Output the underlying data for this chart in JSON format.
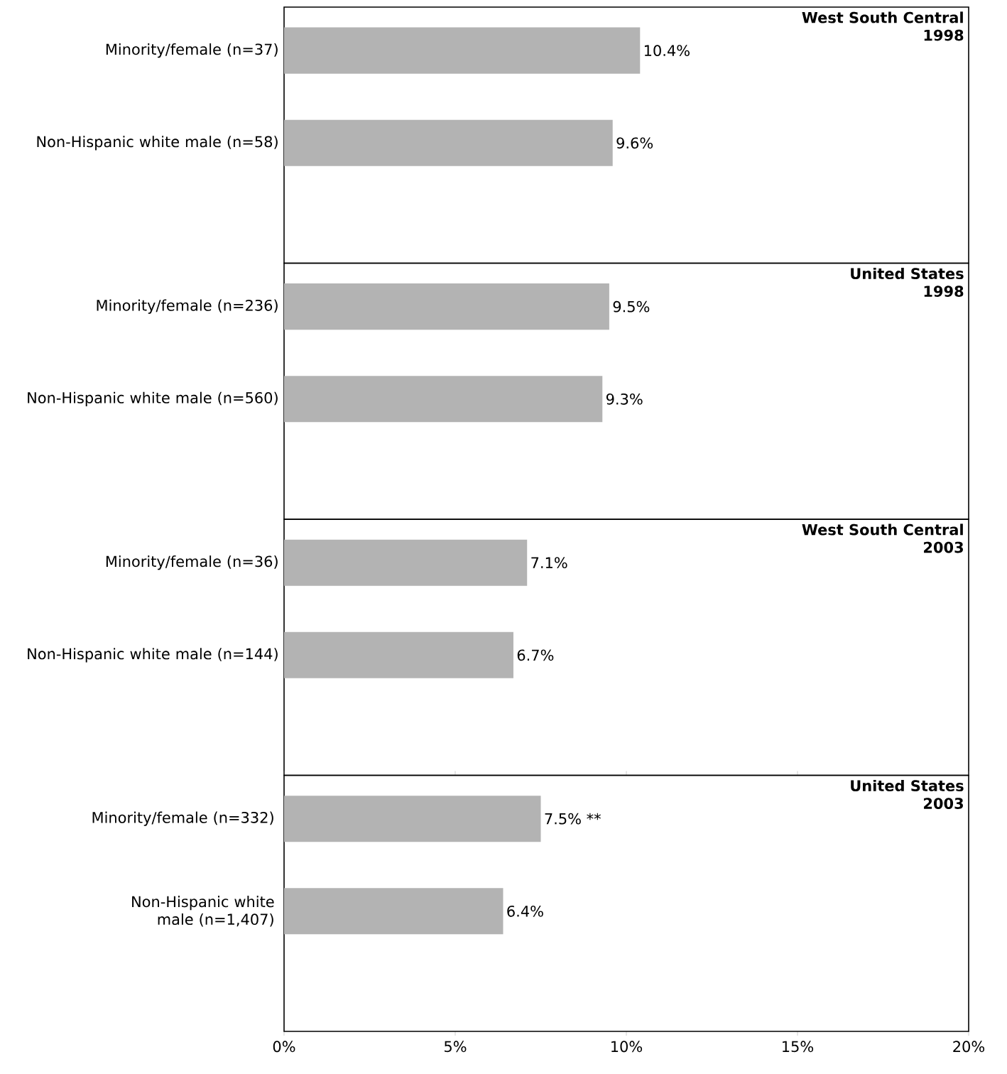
{
  "chart_data": [
    {
      "type": "bar",
      "orientation": "horizontal",
      "title": "West South Central",
      "subtitle": "1998",
      "categories": [
        "Minority/female (n=37)",
        "Non-Hispanic white male (n=58)"
      ],
      "values": [
        10.4,
        9.6
      ],
      "value_labels": [
        "10.4%",
        "9.6%"
      ],
      "color": "#b3b3b3",
      "xlim": [
        0,
        20
      ],
      "tick_labels": "y"
    },
    {
      "type": "bar",
      "orientation": "horizontal",
      "title": "United States",
      "subtitle": "1998",
      "categories": [
        "Minority/female (n=236)",
        "Non-Hispanic white male (n=560)"
      ],
      "values": [
        9.5,
        9.3
      ],
      "value_labels": [
        "9.5%",
        "9.3%"
      ],
      "color": "#b3b3b3",
      "xlim": [
        0,
        20
      ],
      "tick_labels": "y"
    },
    {
      "type": "bar",
      "orientation": "horizontal",
      "title": "West South Central",
      "subtitle": "2003",
      "categories": [
        "Minority/female (n=36)",
        "Non-Hispanic white male (n=144)"
      ],
      "values": [
        7.1,
        6.7
      ],
      "value_labels": [
        "7.1%",
        "6.7%"
      ],
      "color": "#b3b3b3",
      "xlim": [
        0,
        20
      ],
      "tick_labels": "y"
    },
    {
      "type": "bar",
      "orientation": "horizontal",
      "title": "United States",
      "subtitle": "2003",
      "categories": [
        "Minority/female (n=332)",
        "Non-Hispanic white male (n=1,407)"
      ],
      "values": [
        7.5,
        6.4
      ],
      "value_labels": [
        "7.5% **",
        "6.4%"
      ],
      "color": "#b3b3b3",
      "xlim": [
        0,
        20
      ],
      "xticks": [
        {
          "value": 0,
          "label": "0%"
        },
        {
          "value": 5,
          "label": "5%"
        },
        {
          "value": 10,
          "label": "10%"
        },
        {
          "value": 15,
          "label": "15%"
        },
        {
          "value": 20,
          "label": "20%"
        }
      ]
    }
  ]
}
